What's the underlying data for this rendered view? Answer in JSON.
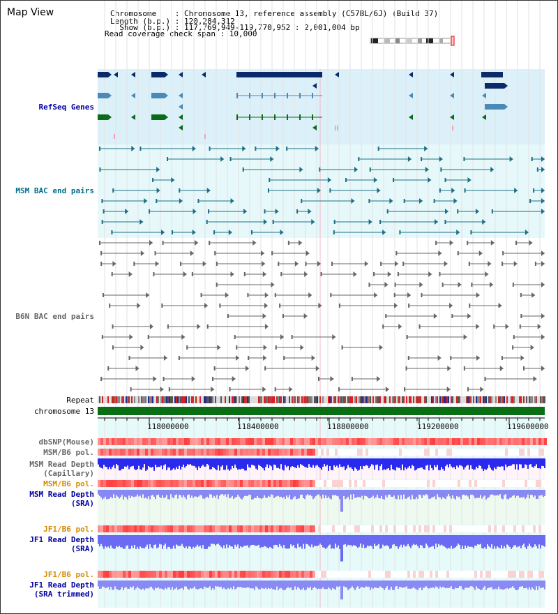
{
  "header": {
    "title": "Map View",
    "info_lines": [
      "Chromosome    : Chromosome 13, reference assembly (C57BL/6J) (Build 37)",
      "Length (b.p.) : 120,284,312",
      "  Show (b.p.) : 117,769,949-119,770,952 : 2,001,004 bp",
      "Read coverage check span : 10,000"
    ]
  },
  "ideogram": {
    "name": "chromosome-13-ideogram"
  },
  "tracks": {
    "refseq": "RefSeq Genes",
    "msm_bac": "MSM BAC end pairs",
    "b6n_bac": "B6N BAC end pairs",
    "repeat": "Repeat",
    "chromosome": "chromosome 13",
    "dbsnp": "dbSNP(Mouse)",
    "msm_b6_pol": "MSM/B6 pol.",
    "msm_read_depth_cap_1": "MSM Read Depth",
    "msm_read_depth_cap_2": "(Capillary)",
    "msm_b6_pol_2": "MSM/B6 pol.",
    "msm_read_depth_sra_1": "MSM Read Depth",
    "msm_read_depth_sra_2": "(SRA)",
    "jf1_b6_pol": "JF1/B6 pol.",
    "jf1_read_depth_sra_1": "JF1 Read Depth",
    "jf1_read_depth_sra_2": "(SRA)",
    "jf1_b6_pol_2": "JF1/B6 pol.",
    "jf1_read_depth_trim_1": "JF1 Read Depth",
    "jf1_read_depth_trim_2": "(SRA trimmed)"
  },
  "axis": {
    "ticks": [
      "118000000",
      "118400000",
      "118800000",
      "119200000",
      "119600000"
    ]
  },
  "colors": {
    "refseq_bg": "#dcf0fa",
    "msm_bg": "#e6f8fa",
    "gene_dark": "#0a2a6a",
    "gene_mid": "#4a8ab8",
    "gene_green": "#0b6b1b",
    "bac_teal": "#1e6f86",
    "bac_gray": "#666666",
    "chromosome_green": "#0a6e14",
    "snp_red": "#ff3b3b",
    "depth_blue": "#2a2aee",
    "depth_light": "#7f7ff5"
  }
}
